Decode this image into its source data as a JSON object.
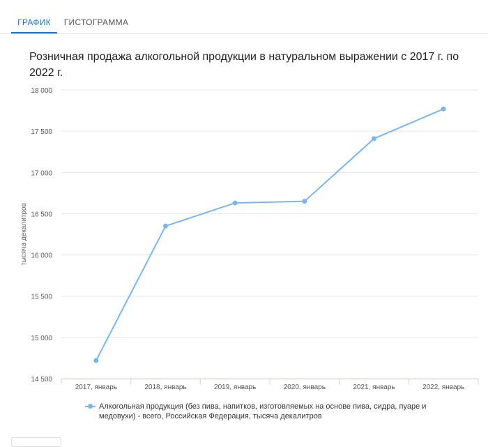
{
  "tabs": [
    {
      "label": "ГРАФИК",
      "active": true
    },
    {
      "label": "ГИСТОГРАММА",
      "active": false
    }
  ],
  "colors": {
    "accent": "#1f74c9",
    "series": "#7cb5ec",
    "grid": "#e6e6e6"
  },
  "chart_data": {
    "type": "line",
    "title": "Розничная продажа алкогольной продукции в натуральном выражении с 2017 г. по 2022 г.",
    "xlabel": "",
    "ylabel": "тысяча декалитров",
    "categories": [
      "2017, январь",
      "2018, январь",
      "2019, январь",
      "2020, январь",
      "2021, январь",
      "2022, январь"
    ],
    "series": [
      {
        "name": "Алкогольная продукция (без пива, напитков, изготовляемых на основе пива, сидра, пуаре и медовухи) - всего, Российская Федерация, тысяча декалитров",
        "values": [
          14720,
          16350,
          16630,
          16650,
          17410,
          17770
        ]
      }
    ],
    "ylim": [
      14500,
      18000
    ],
    "yticks": [
      14500,
      15000,
      15500,
      16000,
      16500,
      17000,
      17500,
      18000
    ],
    "ytick_labels": [
      "14 500",
      "15 000",
      "15 500",
      "16 000",
      "16 500",
      "17 000",
      "17 500",
      "18 000"
    ],
    "grid": true,
    "legend_position": "bottom"
  }
}
